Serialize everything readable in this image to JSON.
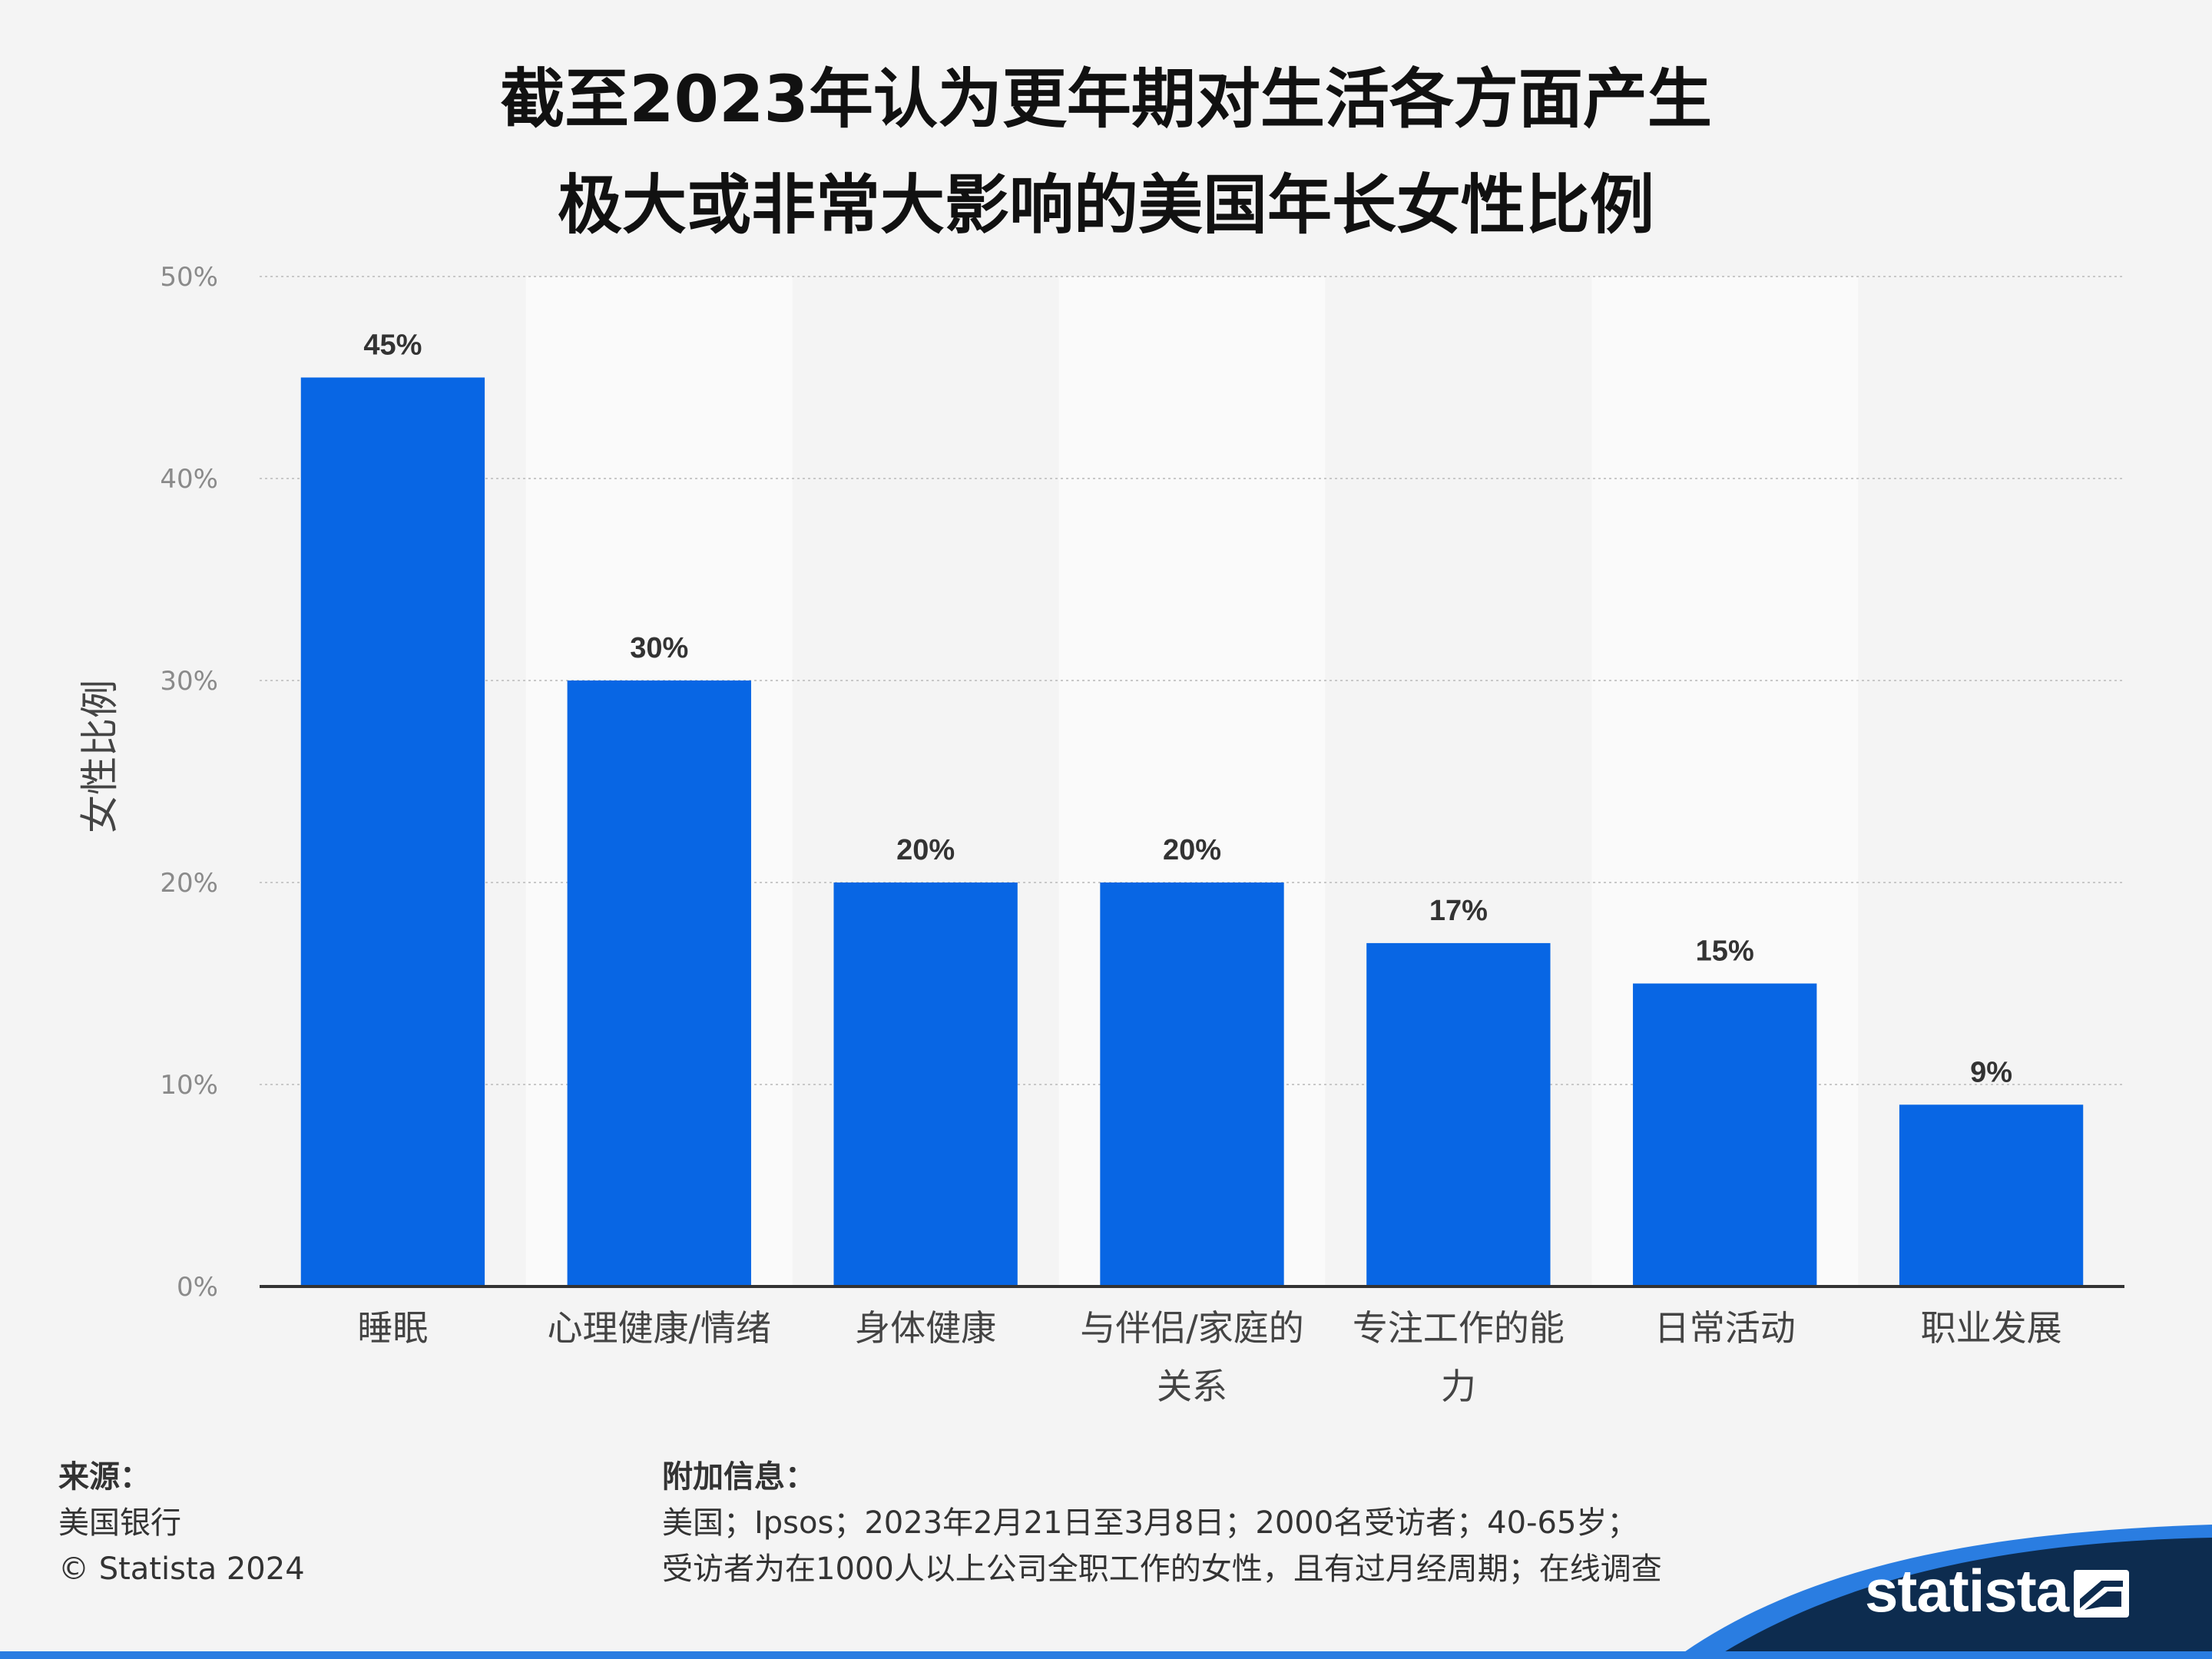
{
  "chart_data": {
    "type": "bar",
    "title_lines": [
      "截至2023年认为更年期对生活各方面产生",
      "极大或非常大影响的美国年长女性比例"
    ],
    "ylabel": "女性比例",
    "categories": [
      "睡眠",
      "心理健康/情绪",
      "身体健康",
      "与伴侣/家庭的关系",
      "专注工作的能力",
      "日常活动",
      "职业发展"
    ],
    "category_label_lines": [
      [
        "睡眠"
      ],
      [
        "心理健康/情绪"
      ],
      [
        "身体健康"
      ],
      [
        "与伴侣/家庭的",
        "关系"
      ],
      [
        "专注工作的能",
        "力"
      ],
      [
        "日常活动"
      ],
      [
        "职业发展"
      ]
    ],
    "values": [
      45,
      30,
      20,
      20,
      17,
      15,
      9
    ],
    "value_labels": [
      "45%",
      "30%",
      "20%",
      "20%",
      "17%",
      "15%",
      "9%"
    ],
    "ylim": [
      0,
      50
    ],
    "yticks": [
      0,
      10,
      20,
      30,
      40,
      50
    ],
    "ytick_labels": [
      "0%",
      "10%",
      "20%",
      "30%",
      "40%",
      "50%"
    ],
    "grid": true,
    "bar_color": "#0866e4"
  },
  "footer": {
    "source_heading": "来源：",
    "source_lines": [
      "美国银行",
      "© Statista 2024"
    ],
    "info_heading": "附加信息：",
    "info_lines": [
      "美国；Ipsos；2023年2月21日至3月8日；2000名受访者；40-65岁；",
      "受访者为在1000人以上公司全职工作的女性，且有过月经周期；在线调查"
    ]
  },
  "brand": {
    "logo_text": "statista",
    "logo_icon": "statista-mark-icon",
    "wave_color": "#0d2c4f",
    "accent_color": "#2a7de1"
  }
}
